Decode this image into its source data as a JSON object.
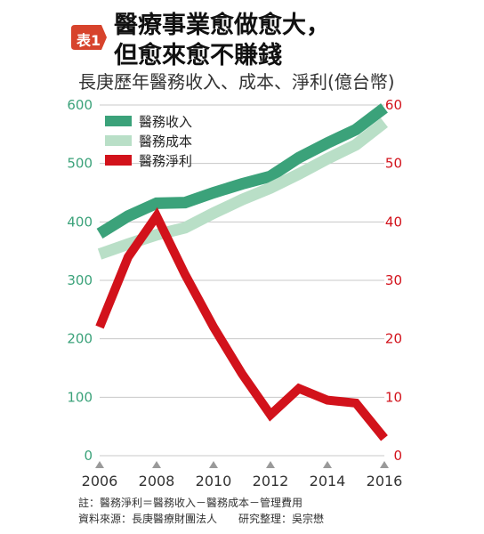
{
  "badge": {
    "text": "表1",
    "color": "#d7432c"
  },
  "title": {
    "line1": "醫療事業愈做愈大，",
    "line2": "但愈來愈不賺錢"
  },
  "subtitle": "長庚歷年醫務收入、成本、淨利(億台幣)",
  "notes": {
    "note": "註：醫務淨利＝醫務收入－醫務成本－管理費用",
    "source": "資料來源：長庚醫療財團法人　　研究整理：吳宗懋"
  },
  "chart_data": {
    "type": "line",
    "x": [
      2006,
      2007,
      2008,
      2009,
      2010,
      2011,
      2012,
      2013,
      2014,
      2015,
      2016
    ],
    "x_ticks": [
      "2006",
      "2008",
      "2010",
      "2012",
      "2014",
      "2016"
    ],
    "y_left_ticks": [
      "0",
      "100",
      "200",
      "300",
      "400",
      "500",
      "600"
    ],
    "y_right_ticks": [
      "0",
      "10",
      "20",
      "30",
      "40",
      "50",
      "60"
    ],
    "y_left_range": [
      0,
      600
    ],
    "y_right_range": [
      0,
      60
    ],
    "grid": true,
    "legend_position": "top-left",
    "series": [
      {
        "name": "醫務收入",
        "axis": "left",
        "color": "#3ba27a",
        "values": [
          380,
          410,
          432,
          433,
          450,
          465,
          478,
          510,
          535,
          558,
          595
        ]
      },
      {
        "name": "醫務成本",
        "axis": "left",
        "color": "#b9dfc7",
        "values": [
          345,
          362,
          378,
          390,
          415,
          438,
          458,
          482,
          508,
          532,
          570
        ]
      },
      {
        "name": "醫務淨利",
        "axis": "right",
        "color": "#d2121b",
        "values": [
          22,
          34,
          41,
          31,
          22,
          14,
          7,
          11.5,
          9.5,
          9,
          3
        ]
      }
    ],
    "left_axis_color": "#3ba27a",
    "right_axis_color": "#d2121b",
    "x_axis_color": "#333333"
  }
}
